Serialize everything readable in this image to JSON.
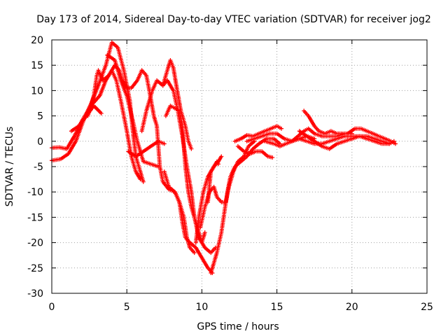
{
  "chart_data": {
    "type": "scatter",
    "title": "Day 173 of 2014, Sidereal Day-to-day VTEC variation (SDTVAR) for receiver jog2",
    "xlabel": "GPS time / hours",
    "ylabel": "SDTVAR / TECUs",
    "xlim": [
      0,
      25
    ],
    "ylim": [
      -30,
      20
    ],
    "xticks": [
      "0",
      "5",
      "10",
      "15",
      "20",
      "25"
    ],
    "yticks": [
      "-30",
      "-25",
      "-20",
      "-15",
      "-10",
      "-5",
      "0",
      "5",
      "10",
      "15",
      "20"
    ],
    "grid": true,
    "marker": "+",
    "series": [
      {
        "name": "sdtvar",
        "color": "#ff0000",
        "tracks": [
          [
            [
              0,
              -3.8
            ],
            [
              0.6,
              -3.5
            ],
            [
              1.1,
              -2.5
            ],
            [
              1.6,
              0
            ],
            [
              2.1,
              4
            ],
            [
              2.7,
              8
            ],
            [
              3.1,
              11
            ],
            [
              3.6,
              15
            ],
            [
              4.0,
              19.5
            ],
            [
              4.4,
              18.5
            ],
            [
              4.8,
              14
            ],
            [
              5.2,
              8
            ],
            [
              5.4,
              2
            ],
            [
              5.6,
              -3
            ],
            [
              5.9,
              -6
            ],
            [
              6.1,
              -8
            ]
          ],
          [
            [
              0,
              -1.3
            ],
            [
              0.5,
              -1.2
            ],
            [
              1.0,
              -1.5
            ],
            [
              1.5,
              1
            ],
            [
              2.0,
              4
            ],
            [
              2.6,
              7
            ],
            [
              3.2,
              9
            ],
            [
              3.6,
              12
            ],
            [
              4.0,
              14
            ],
            [
              4.3,
              12
            ],
            [
              4.6,
              8
            ],
            [
              5.0,
              2
            ],
            [
              5.3,
              -3
            ],
            [
              5.6,
              -6
            ],
            [
              5.9,
              -7.5
            ]
          ],
          [
            [
              1.3,
              2
            ],
            [
              1.8,
              3
            ],
            [
              2.3,
              5
            ],
            [
              2.8,
              7
            ],
            [
              3.3,
              5.5
            ]
          ],
          [
            [
              2.4,
              5
            ],
            [
              2.8,
              9
            ],
            [
              3.0,
              13
            ],
            [
              3.1,
              14
            ],
            [
              3.4,
              12
            ],
            [
              3.8,
              13
            ],
            [
              4.2,
              15
            ],
            [
              4.5,
              14
            ],
            [
              4.7,
              12
            ],
            [
              5.0,
              10.5
            ],
            [
              5.3,
              10.5
            ],
            [
              5.7,
              12
            ],
            [
              6.0,
              14
            ]
          ],
          [
            [
              3.7,
              17
            ],
            [
              4.2,
              16
            ],
            [
              4.6,
              12
            ],
            [
              5.0,
              9
            ],
            [
              5.4,
              4
            ],
            [
              5.7,
              0
            ],
            [
              6.1,
              -4
            ],
            [
              6.6,
              -4.5
            ],
            [
              7.1,
              -5
            ]
          ],
          [
            [
              5.1,
              -2
            ],
            [
              5.6,
              -3
            ],
            [
              6.1,
              -2
            ],
            [
              6.6,
              -1
            ],
            [
              7.1,
              0
            ],
            [
              7.5,
              -0.5
            ]
          ],
          [
            [
              6.0,
              14
            ],
            [
              6.3,
              13
            ],
            [
              6.5,
              10
            ],
            [
              6.8,
              5
            ],
            [
              7.0,
              3
            ],
            [
              7.1,
              -1
            ],
            [
              7.2,
              -5
            ],
            [
              7.4,
              -8
            ],
            [
              7.8,
              -9.5
            ],
            [
              8.2,
              -10
            ],
            [
              8.5,
              -12
            ],
            [
              8.7,
              -16
            ],
            [
              8.9,
              -19
            ],
            [
              9.2,
              -20
            ],
            [
              9.6,
              -21
            ],
            [
              10.0,
              -23
            ],
            [
              10.4,
              -25
            ],
            [
              10.7,
              -26
            ]
          ],
          [
            [
              6.0,
              2
            ],
            [
              6.3,
              6
            ],
            [
              6.7,
              10
            ],
            [
              7.0,
              12
            ],
            [
              7.4,
              11
            ],
            [
              7.7,
              12
            ],
            [
              8.1,
              10
            ],
            [
              8.4,
              6
            ],
            [
              8.7,
              1
            ],
            [
              9.0,
              -5
            ],
            [
              9.3,
              -10
            ],
            [
              9.5,
              -15
            ],
            [
              9.8,
              -19
            ],
            [
              10.2,
              -21
            ],
            [
              10.6,
              -22
            ],
            [
              10.9,
              -21
            ]
          ],
          [
            [
              7.4,
              11
            ],
            [
              7.7,
              14
            ],
            [
              7.9,
              16
            ],
            [
              8.1,
              14.5
            ],
            [
              8.3,
              11
            ],
            [
              8.6,
              6
            ],
            [
              8.9,
              3
            ],
            [
              9.1,
              0
            ],
            [
              9.3,
              -1.5
            ]
          ],
          [
            [
              7.6,
              5
            ],
            [
              7.9,
              7
            ],
            [
              8.2,
              6.5
            ],
            [
              8.5,
              6
            ],
            [
              8.7,
              3
            ],
            [
              8.8,
              -1
            ],
            [
              8.9,
              -5
            ],
            [
              9.1,
              -10
            ],
            [
              9.3,
              -13
            ],
            [
              9.5,
              -15
            ],
            [
              9.8,
              -18
            ],
            [
              10.0,
              -20
            ],
            [
              10.2,
              -18
            ]
          ],
          [
            [
              7.5,
              -6
            ],
            [
              7.8,
              -9
            ],
            [
              8.2,
              -10
            ],
            [
              8.5,
              -12
            ],
            [
              8.8,
              -15
            ],
            [
              9.0,
              -19
            ],
            [
              9.2,
              -21
            ],
            [
              9.5,
              -22
            ]
          ],
          [
            [
              9.6,
              -20
            ],
            [
              9.8,
              -15
            ],
            [
              10.1,
              -10
            ],
            [
              10.4,
              -7
            ],
            [
              10.8,
              -5
            ],
            [
              11.1,
              -4
            ],
            [
              11.3,
              -3
            ]
          ],
          [
            [
              9.9,
              -17
            ],
            [
              10.2,
              -13
            ],
            [
              10.5,
              -10
            ],
            [
              10.8,
              -9
            ],
            [
              11.0,
              -11
            ],
            [
              11.3,
              -12
            ],
            [
              11.6,
              -12
            ],
            [
              11.8,
              -9
            ],
            [
              12.1,
              -6
            ],
            [
              12.4,
              -4
            ],
            [
              12.8,
              -3
            ],
            [
              13.1,
              -1
            ],
            [
              13.5,
              0
            ]
          ],
          [
            [
              10.4,
              -12
            ],
            [
              10.6,
              -6
            ],
            [
              10.8,
              -5
            ],
            [
              11.0,
              -4
            ],
            [
              11.1,
              -4.5
            ]
          ],
          [
            [
              10.6,
              -26
            ],
            [
              11.0,
              -22
            ],
            [
              11.3,
              -18
            ],
            [
              11.5,
              -14
            ],
            [
              11.7,
              -10
            ],
            [
              11.9,
              -7
            ],
            [
              12.2,
              -5
            ],
            [
              12.6,
              -4
            ],
            [
              13.0,
              -3
            ],
            [
              13.4,
              -1.5
            ],
            [
              13.8,
              -0.5
            ],
            [
              14.3,
              0.5
            ],
            [
              14.8,
              0.5
            ],
            [
              15.2,
              -0.5
            ]
          ],
          [
            [
              12.4,
              -1
            ],
            [
              12.8,
              -2
            ],
            [
              13.2,
              -2.5
            ],
            [
              13.6,
              -2
            ],
            [
              14.0,
              -2
            ],
            [
              14.4,
              -3
            ],
            [
              14.7,
              -3.2
            ]
          ],
          [
            [
              12.2,
              0
            ],
            [
              12.6,
              0.5
            ],
            [
              13.0,
              1.2
            ],
            [
              13.4,
              1
            ],
            [
              13.8,
              1.5
            ],
            [
              14.2,
              2
            ],
            [
              14.6,
              2.5
            ],
            [
              15.0,
              3
            ],
            [
              15.3,
              2.5
            ]
          ],
          [
            [
              13.0,
              0
            ],
            [
              13.5,
              0.5
            ],
            [
              14.0,
              1
            ],
            [
              14.5,
              1.5
            ],
            [
              15.0,
              1.5
            ],
            [
              15.5,
              0.5
            ],
            [
              16.0,
              0
            ],
            [
              16.5,
              0.5
            ],
            [
              17.0,
              1
            ],
            [
              17.5,
              0.5
            ]
          ],
          [
            [
              14.2,
              0
            ],
            [
              14.8,
              -0.5
            ],
            [
              15.2,
              -1
            ],
            [
              15.6,
              -0.5
            ],
            [
              16.0,
              0
            ],
            [
              16.4,
              1
            ],
            [
              16.8,
              2
            ],
            [
              17.1,
              2.5
            ],
            [
              17.5,
              1.5
            ],
            [
              18.0,
              1
            ],
            [
              18.5,
              1
            ],
            [
              19.0,
              1
            ],
            [
              19.5,
              1.5
            ],
            [
              20.0,
              1.5
            ]
          ],
          [
            [
              16.8,
              6
            ],
            [
              17.1,
              5
            ],
            [
              17.5,
              3
            ],
            [
              17.8,
              2
            ],
            [
              18.2,
              1.5
            ],
            [
              18.6,
              2
            ],
            [
              19.0,
              1.5
            ],
            [
              19.4,
              1.5
            ]
          ],
          [
            [
              16.5,
              2
            ],
            [
              17.0,
              1
            ],
            [
              17.5,
              0
            ],
            [
              18.0,
              -1
            ],
            [
              18.5,
              -1.5
            ],
            [
              19.0,
              -0.5
            ],
            [
              19.5,
              0
            ],
            [
              20.0,
              0.5
            ]
          ],
          [
            [
              16.0,
              0
            ],
            [
              16.5,
              0.5
            ],
            [
              17.0,
              0
            ],
            [
              17.5,
              -0.5
            ],
            [
              18.0,
              -0.5
            ],
            [
              18.5,
              0
            ],
            [
              19.0,
              0.5
            ],
            [
              19.5,
              1
            ],
            [
              20.0,
              1
            ],
            [
              20.5,
              1
            ],
            [
              21.0,
              0.5
            ],
            [
              21.5,
              0
            ],
            [
              22.0,
              -0.5
            ],
            [
              22.5,
              -0.5
            ]
          ],
          [
            [
              19.7,
              1.5
            ],
            [
              20.2,
              2.5
            ],
            [
              20.6,
              2.5
            ],
            [
              21.0,
              2
            ],
            [
              21.4,
              1.5
            ],
            [
              21.8,
              1
            ],
            [
              22.2,
              0.5
            ],
            [
              22.6,
              0
            ],
            [
              22.9,
              -0.5
            ]
          ],
          [
            [
              20.0,
              0.5
            ],
            [
              20.5,
              1
            ],
            [
              21.0,
              1
            ],
            [
              21.5,
              0.5
            ],
            [
              22.0,
              0
            ],
            [
              22.5,
              -0.5
            ],
            [
              22.8,
              0
            ]
          ]
        ]
      }
    ]
  }
}
